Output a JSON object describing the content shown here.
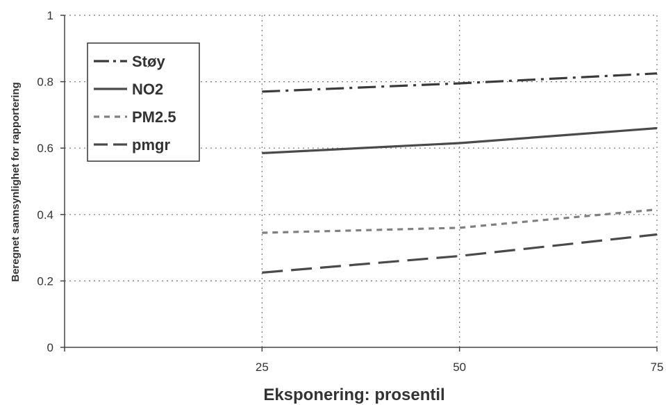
{
  "chart_data": {
    "type": "line",
    "title": "",
    "xlabel": "Eksponering: prosentil",
    "ylabel": "Beregnet sannsynlighet for rapportering",
    "xlim": [
      0,
      75
    ],
    "ylim": [
      0,
      1
    ],
    "x_ticks": [
      25,
      50,
      75
    ],
    "y_ticks": [
      0,
      0.2,
      0.4,
      0.6,
      0.8,
      1
    ],
    "grid": "dotted",
    "legend_position": "top-left",
    "x": [
      25,
      50,
      75
    ],
    "series": [
      {
        "name": "Støy",
        "values": [
          0.77,
          0.795,
          0.825
        ],
        "style": "dash-dot",
        "color": "#3a3a3a"
      },
      {
        "name": "NO2",
        "values": [
          0.585,
          0.615,
          0.66
        ],
        "style": "solid",
        "color": "#4a4a4a"
      },
      {
        "name": "PM2.5",
        "values": [
          0.345,
          0.36,
          0.415
        ],
        "style": "short-dash",
        "color": "#808080"
      },
      {
        "name": "pmgr",
        "values": [
          0.225,
          0.275,
          0.34
        ],
        "style": "long-dash",
        "color": "#4a4a4a"
      }
    ]
  }
}
